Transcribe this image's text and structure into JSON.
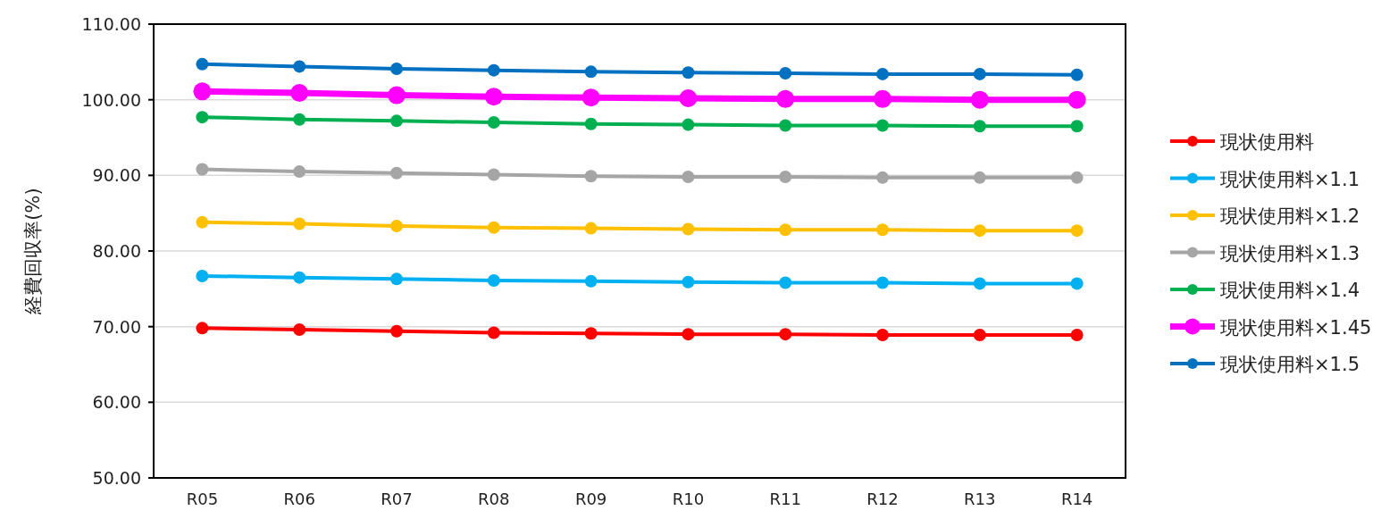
{
  "chart_data": {
    "type": "line",
    "ylabel": "経費回収率(%)",
    "categories": [
      "R05",
      "R06",
      "R07",
      "R08",
      "R09",
      "R10",
      "R11",
      "R12",
      "R13",
      "R14"
    ],
    "series": [
      {
        "name": "現状使用料",
        "color": "#ff0000",
        "values": [
          69.8,
          69.6,
          69.4,
          69.2,
          69.1,
          69.0,
          69.0,
          68.9,
          68.9,
          68.9
        ]
      },
      {
        "name": "現状使用料×1.1",
        "color": "#00b0f0",
        "values": [
          76.7,
          76.5,
          76.3,
          76.1,
          76.0,
          75.9,
          75.8,
          75.8,
          75.7,
          75.7
        ]
      },
      {
        "name": "現状使用料×1.2",
        "color": "#ffc000",
        "values": [
          83.8,
          83.6,
          83.3,
          83.1,
          83.0,
          82.9,
          82.8,
          82.8,
          82.7,
          82.7
        ]
      },
      {
        "name": "現状使用料×1.3",
        "color": "#a5a5a5",
        "values": [
          90.8,
          90.5,
          90.3,
          90.1,
          89.9,
          89.8,
          89.8,
          89.7,
          89.7,
          89.7
        ]
      },
      {
        "name": "現状使用料×1.4",
        "color": "#00b050",
        "values": [
          97.7,
          97.4,
          97.2,
          97.0,
          96.8,
          96.7,
          96.6,
          96.6,
          96.5,
          96.5
        ]
      },
      {
        "name": "現状使用料×1.45",
        "color": "#ff00ff",
        "values": [
          101.1,
          100.9,
          100.6,
          100.4,
          100.3,
          100.2,
          100.1,
          100.1,
          100.0,
          100.0
        ]
      },
      {
        "name": "現状使用料×1.5",
        "color": "#0070c0",
        "values": [
          104.7,
          104.4,
          104.1,
          103.9,
          103.7,
          103.6,
          103.5,
          103.4,
          103.4,
          103.3
        ]
      }
    ],
    "ylim": [
      50,
      110
    ],
    "yticks": [
      {
        "value": 50,
        "label": "50.00"
      },
      {
        "value": 60,
        "label": "60.00"
      },
      {
        "value": 70,
        "label": "70.00"
      },
      {
        "value": 80,
        "label": "80.00"
      },
      {
        "value": 90,
        "label": "90.00"
      },
      {
        "value": 100,
        "label": "100.00"
      },
      {
        "value": 110,
        "label": "110.00"
      }
    ],
    "grid": "y",
    "legend": "right",
    "marker": "circle",
    "line_style": "solid"
  }
}
